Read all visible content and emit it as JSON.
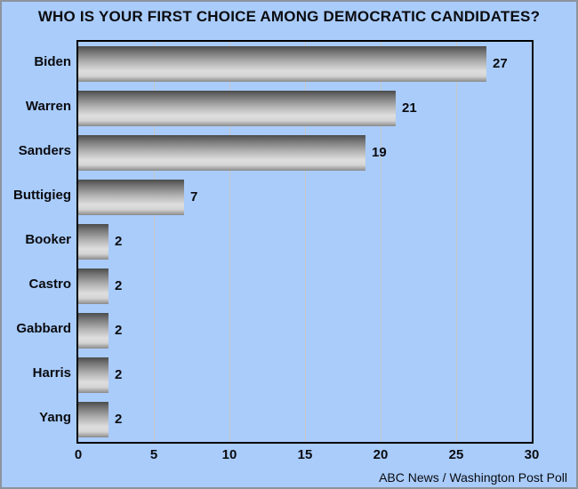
{
  "title": "WHO IS YOUR FIRST CHOICE AMONG DEMOCRATIC CANDIDATES?",
  "source": "ABC News / Washington Post Poll",
  "chart_data": {
    "type": "bar",
    "orientation": "horizontal",
    "title": "WHO IS YOUR FIRST CHOICE AMONG DEMOCRATIC CANDIDATES?",
    "categories": [
      "Biden",
      "Warren",
      "Sanders",
      "Buttigieg",
      "Booker",
      "Castro",
      "Gabbard",
      "Harris",
      "Yang"
    ],
    "values": [
      27,
      21,
      19,
      7,
      2,
      2,
      2,
      2,
      2
    ],
    "xlabel": "",
    "ylabel": "",
    "xlim": [
      0,
      30
    ],
    "xticks": [
      0,
      5,
      10,
      15,
      20,
      25,
      30
    ],
    "grid": true,
    "legend": "none",
    "annotations": "value labels at bar ends",
    "source": "ABC News / Washington Post Poll",
    "colors": {
      "background": "#a9ccfb",
      "frame_border": "#8d939c",
      "plot_border": "#000000",
      "gridline": "#c6c6c6",
      "bar_dark": "#4c4c4c",
      "bar_light": "#dedede",
      "text": "#0b0b0f"
    }
  }
}
